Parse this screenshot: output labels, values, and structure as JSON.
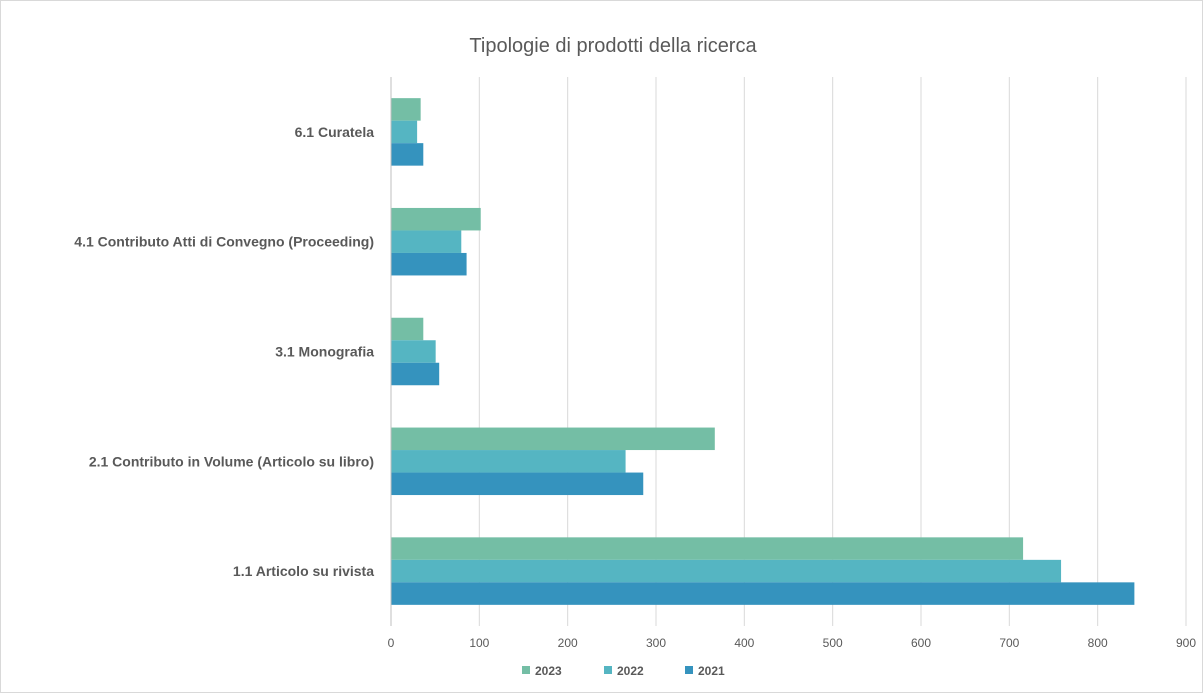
{
  "chart_data": {
    "type": "bar",
    "orientation": "horizontal",
    "title": "Tipologie di prodotti della ricerca",
    "categories": [
      "1.1 Articolo su rivista",
      "2.1 Contributo in Volume (Articolo su libro)",
      "3.1 Monografia",
      "4.1 Contributo Atti di Convegno (Proceeding)",
      "6.1 Curatela"
    ],
    "series": [
      {
        "name": "2021",
        "color": "#3593BE",
        "values": [
          841,
          285,
          54,
          85,
          36
        ]
      },
      {
        "name": "2022",
        "color": "#55B5C2",
        "values": [
          758,
          265,
          50,
          79,
          29
        ]
      },
      {
        "name": "2023",
        "color": "#74BEA5",
        "values": [
          715,
          366,
          36,
          101,
          33
        ]
      }
    ],
    "xlim": [
      0,
      900
    ],
    "xticks": [
      "0",
      "100",
      "200",
      "300",
      "400",
      "500",
      "600",
      "700",
      "800",
      "900"
    ],
    "xlabel": "",
    "ylabel": "",
    "grid": true,
    "legend_position": "bottom",
    "legend_order": [
      "2023",
      "2022",
      "2021"
    ]
  }
}
